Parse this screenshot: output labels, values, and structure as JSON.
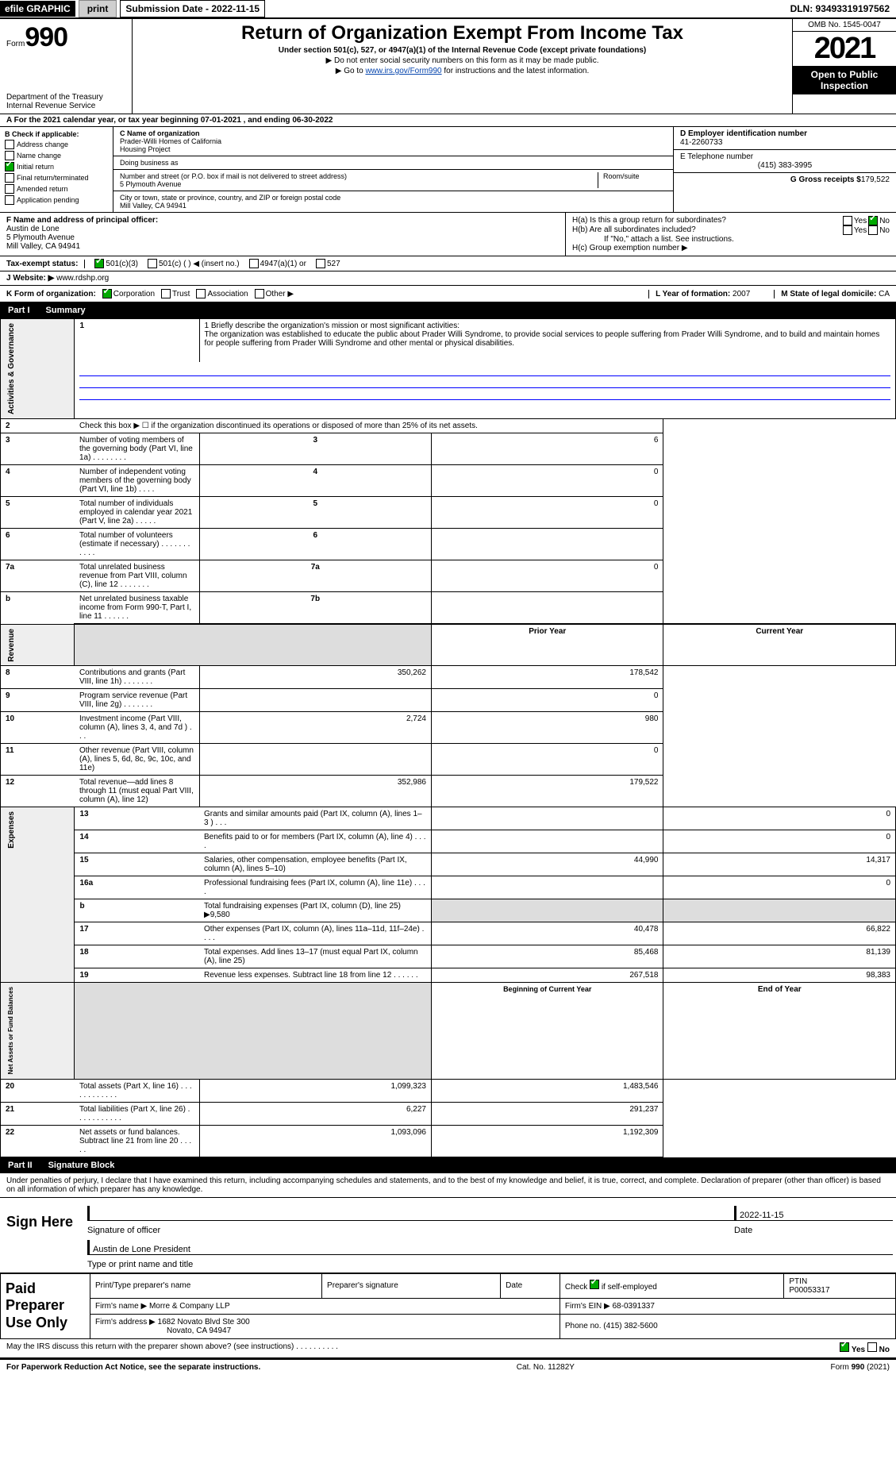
{
  "top": {
    "efile": "efile GRAPHIC",
    "print_btn": "print",
    "sub_date_label": "Submission Date - 2022-11-15",
    "dln": "DLN: 93493319197562"
  },
  "header": {
    "form_label": "Form",
    "form_num": "990",
    "dept": "Department of the Treasury\nInternal Revenue Service",
    "title": "Return of Organization Exempt From Income Tax",
    "subtitle": "Under section 501(c), 527, or 4947(a)(1) of the Internal Revenue Code (except private foundations)",
    "line1": "▶ Do not enter social security numbers on this form as it may be made public.",
    "line2_pre": "▶ Go to ",
    "line2_link": "www.irs.gov/Form990",
    "line2_post": " for instructions and the latest information.",
    "omb": "OMB No. 1545-0047",
    "year": "2021",
    "open_public": "Open to Public Inspection"
  },
  "sectionA": "A For the 2021 calendar year, or tax year beginning 07-01-2021    , and ending 06-30-2022",
  "blockB": {
    "label": "B Check if applicable:",
    "items": [
      "Address change",
      "Name change",
      "Initial return",
      "Final return/terminated",
      "Amended return",
      "Application pending"
    ],
    "checked_idx": 2
  },
  "blockC": {
    "c_label": "C Name of organization",
    "org_name": "Prader-Willi Homes of California\nHousing Project",
    "dba_label": "Doing business as",
    "street_label": "Number and street (or P.O. box if mail is not delivered to street address)",
    "room_label": "Room/suite",
    "street": "5 Plymouth Avenue",
    "city_label": "City or town, state or province, country, and ZIP or foreign postal code",
    "city": "Mill Valley, CA  94941"
  },
  "blockDE": {
    "d_label": "D Employer identification number",
    "ein": "41-2260733",
    "e_label": "E Telephone number",
    "phone": "(415) 383-3995",
    "g_label": "G Gross receipts $",
    "g_val": "179,522"
  },
  "blockF": {
    "label": "F  Name and address of principal officer:",
    "name": "Austin de Lone",
    "addr1": "5 Plymouth Avenue",
    "addr2": "Mill Valley, CA  94941"
  },
  "blockH": {
    "ha": "H(a)  Is this a group return for subordinates?",
    "hb": "H(b)  Are all subordinates included?",
    "hb_note": "If \"No,\" attach a list. See instructions.",
    "hc": "H(c)  Group exemption number ▶",
    "yes": "Yes",
    "no": "No"
  },
  "rowI": {
    "label": "Tax-exempt status:",
    "opts": [
      "501(c)(3)",
      "501(c) (   ) ◀ (insert no.)",
      "4947(a)(1) or",
      "527"
    ]
  },
  "rowJ": {
    "label": "J  Website: ▶",
    "val": "www.rdshp.org"
  },
  "rowK": {
    "label": "K Form of organization:",
    "opts": [
      "Corporation",
      "Trust",
      "Association",
      "Other ▶"
    ],
    "l_label": "L Year of formation:",
    "l_val": "2007",
    "m_label": "M State of legal domicile:",
    "m_val": "CA"
  },
  "partI": {
    "bar": "Part I",
    "title": "Summary"
  },
  "mission": {
    "label": "1  Briefly describe the organization's mission or most significant activities:",
    "text": "The organization was established to educate the public about Prader Willi Syndrome, to provide social services to people suffering from Prader Willi Syndrome, and to build and maintain homes for people suffering from Prader Willi Syndrome and other mental or physical disabilities."
  },
  "gov_rows": [
    {
      "n": "2",
      "d": "Check this box ▶ ☐ if the organization discontinued its operations or disposed of more than 25% of its net assets."
    },
    {
      "n": "3",
      "d": "Number of voting members of the governing body (Part VI, line 1a)  .   .   .   .   .   .   .   .",
      "box": "3",
      "v": "6"
    },
    {
      "n": "4",
      "d": "Number of independent voting members of the governing body (Part VI, line 1b)  .   .   .   .",
      "box": "4",
      "v": "0"
    },
    {
      "n": "5",
      "d": "Total number of individuals employed in calendar year 2021 (Part V, line 2a)  .   .   .   .   .",
      "box": "5",
      "v": "0"
    },
    {
      "n": "6",
      "d": "Total number of volunteers (estimate if necessary)   .   .   .   .   .   .   .   .   .   .   .",
      "box": "6",
      "v": ""
    },
    {
      "n": "7a",
      "d": "Total unrelated business revenue from Part VIII, column (C), line 12  .   .   .   .   .   .   .",
      "box": "7a",
      "v": "0"
    },
    {
      "n": "b",
      "d": "Net unrelated business taxable income from Form 990-T, Part I, line 11  .   .   .   .   .   .",
      "box": "7b",
      "v": ""
    }
  ],
  "two_col_header": {
    "py": "Prior Year",
    "cy": "Current Year"
  },
  "revenue_rows": [
    {
      "n": "8",
      "d": "Contributions and grants (Part VIII, line 1h)   .   .   .   .   .   .   .",
      "py": "350,262",
      "cy": "178,542"
    },
    {
      "n": "9",
      "d": "Program service revenue (Part VIII, line 2g)   .   .   .   .   .   .   .",
      "py": "",
      "cy": "0"
    },
    {
      "n": "10",
      "d": "Investment income (Part VIII, column (A), lines 3, 4, and 7d )   .   .   .",
      "py": "2,724",
      "cy": "980"
    },
    {
      "n": "11",
      "d": "Other revenue (Part VIII, column (A), lines 5, 6d, 8c, 9c, 10c, and 11e)",
      "py": "",
      "cy": "0"
    },
    {
      "n": "12",
      "d": "Total revenue—add lines 8 through 11 (must equal Part VIII, column (A), line 12)",
      "py": "352,986",
      "cy": "179,522"
    }
  ],
  "expense_rows": [
    {
      "n": "13",
      "d": "Grants and similar amounts paid (Part IX, column (A), lines 1–3 )   .   .   .",
      "py": "",
      "cy": "0"
    },
    {
      "n": "14",
      "d": "Benefits paid to or for members (Part IX, column (A), line 4)   .   .   .   .",
      "py": "",
      "cy": "0"
    },
    {
      "n": "15",
      "d": "Salaries, other compensation, employee benefits (Part IX, column (A), lines 5–10)",
      "py": "44,990",
      "cy": "14,317"
    },
    {
      "n": "16a",
      "d": "Professional fundraising fees (Part IX, column (A), line 11e)   .   .   .   .",
      "py": "",
      "cy": "0"
    },
    {
      "n": "b",
      "d": "Total fundraising expenses (Part IX, column (D), line 25) ▶9,580",
      "gray": true
    },
    {
      "n": "17",
      "d": "Other expenses (Part IX, column (A), lines 11a–11d, 11f–24e)   .   .   .   .",
      "py": "40,478",
      "cy": "66,822"
    },
    {
      "n": "18",
      "d": "Total expenses. Add lines 13–17 (must equal Part IX, column (A), line 25)",
      "py": "85,468",
      "cy": "81,139"
    },
    {
      "n": "19",
      "d": "Revenue less expenses. Subtract line 18 from line 12   .   .   .   .   .   .",
      "py": "267,518",
      "cy": "98,383"
    }
  ],
  "net_header": {
    "py": "Beginning of Current Year",
    "cy": "End of Year"
  },
  "net_rows": [
    {
      "n": "20",
      "d": "Total assets (Part X, line 16)   .   .   .   .   .   .   .   .   .   .   .   .",
      "py": "1,099,323",
      "cy": "1,483,546"
    },
    {
      "n": "21",
      "d": "Total liabilities (Part X, line 26)   .   .   .   .   .   .   .   .   .   .   .",
      "py": "6,227",
      "cy": "291,237"
    },
    {
      "n": "22",
      "d": "Net assets or fund balances. Subtract line 21 from line 20   .   .   .   .   .",
      "py": "1,093,096",
      "cy": "1,192,309"
    }
  ],
  "partII": {
    "bar": "Part II",
    "title": "Signature Block"
  },
  "sig": {
    "decl": "Under penalties of perjury, I declare that I have examined this return, including accompanying schedules and statements, and to the best of my knowledge and belief, it is true, correct, and complete. Declaration of preparer (other than officer) is based on all information of which preparer has any knowledge.",
    "sign_here": "Sign Here",
    "sig_officer": "Signature of officer",
    "date": "2022-11-15",
    "date_label": "Date",
    "name_title": "Austin de Lone  President",
    "name_label": "Type or print name and title"
  },
  "prep": {
    "section": "Paid Preparer Use Only",
    "h1": "Print/Type preparer's name",
    "h2": "Preparer's signature",
    "h3": "Date",
    "h4_label": "Check",
    "h4_if": "if self-employed",
    "h5": "PTIN",
    "ptin": "P00053317",
    "firm_label": "Firm's name    ▶",
    "firm": "Morre & Company LLP",
    "ein_label": "Firm's EIN ▶",
    "ein": "68-0391337",
    "addr_label": "Firm's address ▶",
    "addr1": "1682 Novato Blvd Ste 300",
    "addr2": "Novato, CA  94947",
    "phone_label": "Phone no.",
    "phone": "(415) 382-5600"
  },
  "discuss": {
    "q": "May the IRS discuss this return with the preparer shown above? (see instructions)   .   .   .   .   .   .   .   .   .   .",
    "yes": "Yes",
    "no": "No"
  },
  "footer": {
    "left": "For Paperwork Reduction Act Notice, see the separate instructions.",
    "mid": "Cat. No. 11282Y",
    "right": "Form 990 (2021)"
  },
  "vert": {
    "gov": "Activities & Governance",
    "rev": "Revenue",
    "exp": "Expenses",
    "net": "Net Assets or Fund Balances"
  }
}
